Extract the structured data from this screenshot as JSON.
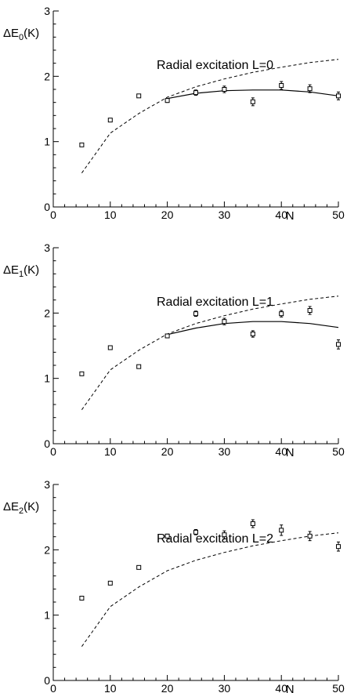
{
  "chart_data": [
    {
      "type": "scatter",
      "title": "Radial excitation L=0",
      "ylabel_main": "ΔE",
      "ylabel_sub": "0",
      "ylabel_unit": "(K)",
      "xlabel": "N",
      "xlim": [
        0,
        50
      ],
      "ylim": [
        0,
        3
      ],
      "xticks": [
        0,
        10,
        20,
        30,
        40,
        50
      ],
      "yticks": [
        0,
        1,
        2,
        3
      ],
      "grid": false,
      "points": [
        {
          "x": 5,
          "y": 0.95,
          "err": 0.02
        },
        {
          "x": 10,
          "y": 1.33,
          "err": 0.02
        },
        {
          "x": 15,
          "y": 1.7,
          "err": 0.02
        },
        {
          "x": 20,
          "y": 1.63,
          "err": 0.03
        },
        {
          "x": 25,
          "y": 1.75,
          "err": 0.04
        },
        {
          "x": 30,
          "y": 1.8,
          "err": 0.05
        },
        {
          "x": 35,
          "y": 1.61,
          "err": 0.06
        },
        {
          "x": 40,
          "y": 1.86,
          "err": 0.06
        },
        {
          "x": 45,
          "y": 1.81,
          "err": 0.06
        },
        {
          "x": 50,
          "y": 1.7,
          "err": 0.06
        }
      ],
      "dashed": {
        "x": [
          5,
          10,
          15,
          20,
          25,
          30,
          35,
          40,
          45,
          50
        ],
        "y": [
          0.52,
          1.13,
          1.43,
          1.68,
          1.84,
          1.96,
          2.06,
          2.14,
          2.21,
          2.26
        ]
      },
      "solid": {
        "x": [
          20,
          25,
          30,
          35,
          40,
          45,
          50
        ],
        "y": [
          1.66,
          1.74,
          1.78,
          1.79,
          1.79,
          1.76,
          1.7
        ]
      }
    },
    {
      "type": "scatter",
      "title": "Radial excitation L=1",
      "ylabel_main": "ΔE",
      "ylabel_sub": "1",
      "ylabel_unit": "(K)",
      "xlabel": "N",
      "xlim": [
        0,
        50
      ],
      "ylim": [
        0,
        3
      ],
      "xticks": [
        0,
        10,
        20,
        30,
        40,
        50
      ],
      "yticks": [
        0,
        1,
        2,
        3
      ],
      "grid": false,
      "points": [
        {
          "x": 5,
          "y": 1.07,
          "err": 0.02
        },
        {
          "x": 10,
          "y": 1.47,
          "err": 0.02
        },
        {
          "x": 15,
          "y": 1.18,
          "err": 0.02
        },
        {
          "x": 20,
          "y": 1.65,
          "err": 0.03
        },
        {
          "x": 25,
          "y": 1.99,
          "err": 0.04
        },
        {
          "x": 30,
          "y": 1.87,
          "err": 0.05
        },
        {
          "x": 35,
          "y": 1.68,
          "err": 0.05
        },
        {
          "x": 40,
          "y": 1.99,
          "err": 0.05
        },
        {
          "x": 45,
          "y": 2.04,
          "err": 0.06
        },
        {
          "x": 50,
          "y": 1.52,
          "err": 0.07
        }
      ],
      "dashed": {
        "x": [
          5,
          10,
          15,
          20,
          25,
          30,
          35,
          40,
          45,
          50
        ],
        "y": [
          0.52,
          1.13,
          1.43,
          1.68,
          1.84,
          1.96,
          2.06,
          2.14,
          2.21,
          2.26
        ]
      },
      "solid": {
        "x": [
          20,
          25,
          30,
          35,
          40,
          45,
          50
        ],
        "y": [
          1.67,
          1.77,
          1.84,
          1.87,
          1.87,
          1.84,
          1.78
        ]
      }
    },
    {
      "type": "scatter",
      "title": "Radial excitation L=2",
      "ylabel_main": "ΔE",
      "ylabel_sub": "2",
      "ylabel_unit": "(K)",
      "xlabel": "N",
      "xlim": [
        0,
        50
      ],
      "ylim": [
        0,
        3
      ],
      "xticks": [
        0,
        10,
        20,
        30,
        40,
        50
      ],
      "yticks": [
        0,
        1,
        2,
        3
      ],
      "grid": false,
      "points": [
        {
          "x": 5,
          "y": 1.26,
          "err": 0.02
        },
        {
          "x": 10,
          "y": 1.49,
          "err": 0.02
        },
        {
          "x": 15,
          "y": 1.73,
          "err": 0.02
        },
        {
          "x": 20,
          "y": 2.21,
          "err": 0.03
        },
        {
          "x": 25,
          "y": 2.27,
          "err": 0.04
        },
        {
          "x": 30,
          "y": 2.23,
          "err": 0.06
        },
        {
          "x": 35,
          "y": 2.4,
          "err": 0.06
        },
        {
          "x": 40,
          "y": 2.3,
          "err": 0.08
        },
        {
          "x": 45,
          "y": 2.21,
          "err": 0.07
        },
        {
          "x": 50,
          "y": 2.05,
          "err": 0.07
        }
      ],
      "dashed": {
        "x": [
          5,
          10,
          15,
          20,
          25,
          30,
          35,
          40,
          45,
          50
        ],
        "y": [
          0.52,
          1.13,
          1.43,
          1.68,
          1.84,
          1.96,
          2.06,
          2.14,
          2.21,
          2.26
        ]
      }
    }
  ]
}
